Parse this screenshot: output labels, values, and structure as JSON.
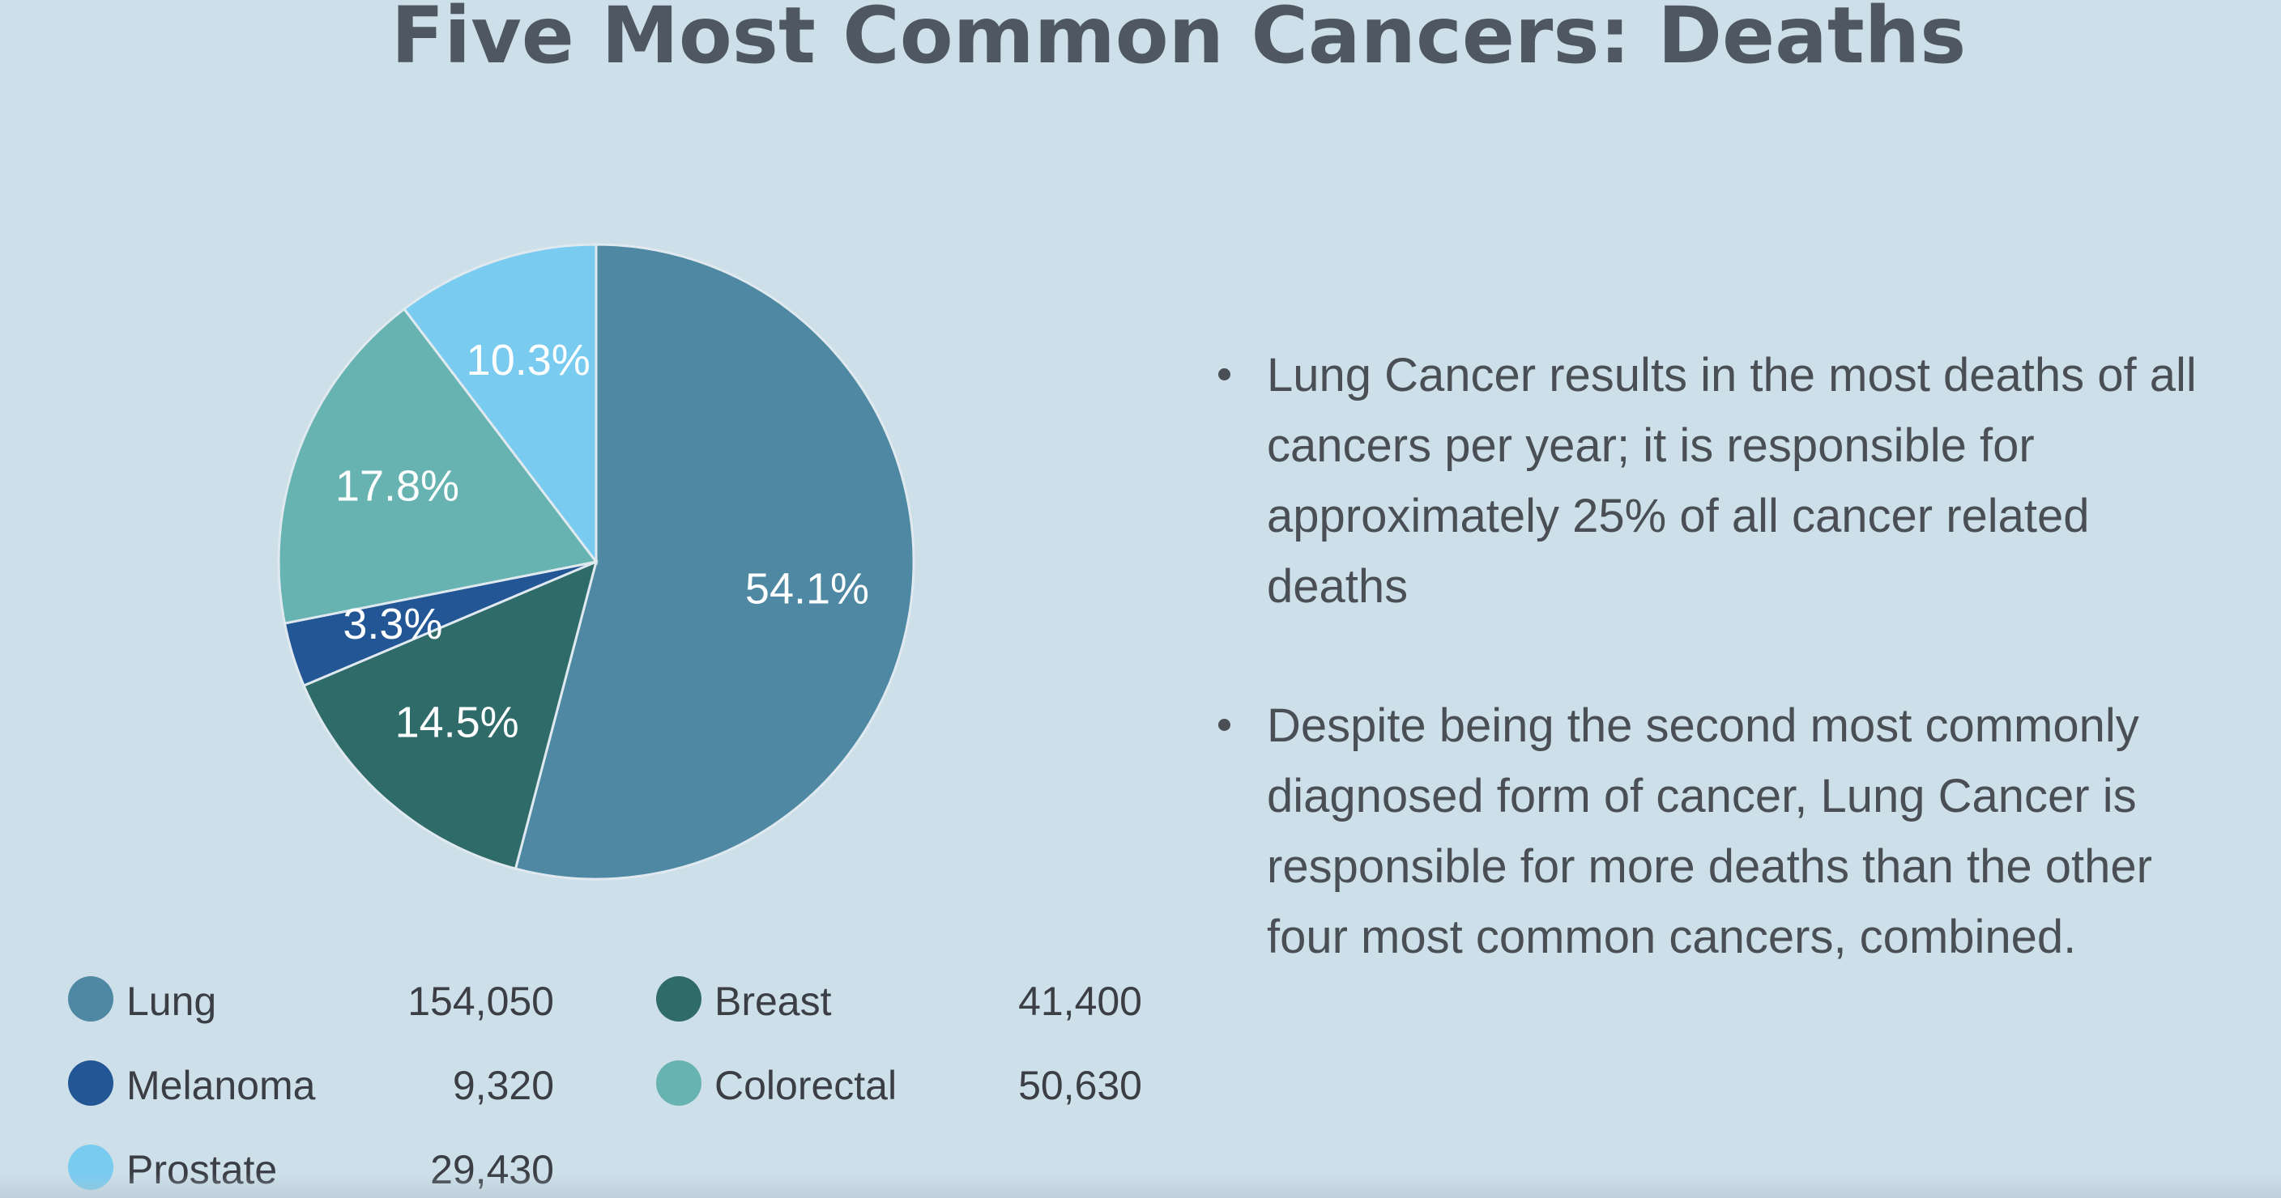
{
  "title": "Five Most Common Cancers: Deaths",
  "chart_data": {
    "type": "pie",
    "title": "Five Most Common Cancers: Deaths",
    "slices": [
      {
        "label": "Lung",
        "value": 154050,
        "percent_label": "54.1%",
        "color": "#4e88a2"
      },
      {
        "label": "Breast",
        "value": 41400,
        "percent_label": "14.5%",
        "color": "#2e6b69"
      },
      {
        "label": "Melanoma",
        "value": 9320,
        "percent_label": "3.3%",
        "color": "#225694"
      },
      {
        "label": "Colorectal",
        "value": 50630,
        "percent_label": "17.8%",
        "color": "#67b3b1"
      },
      {
        "label": "Prostate",
        "value": 29430,
        "percent_label": "10.3%",
        "color": "#79cbf0"
      }
    ],
    "slice_order": "clockwise from top",
    "legend": [
      {
        "label": "Lung",
        "value": "154,050",
        "color": "#4e88a2"
      },
      {
        "label": "Breast",
        "value": "41,400",
        "color": "#2e6b69"
      },
      {
        "label": "Melanoma",
        "value": "9,320",
        "color": "#225694"
      },
      {
        "label": "Colorectal",
        "value": "50,630",
        "color": "#67b3b1"
      },
      {
        "label": "Prostate",
        "value": "29,430",
        "color": "#79cbf0"
      }
    ],
    "legend_placement": "bottom"
  },
  "notes": [
    "Lung Cancer results in the most deaths of all cancers per year; it is responsible for approximately 25% of all cancer related deaths",
    "Despite being the second most commonly diagnosed form of cancer, Lung Cancer is responsible for more deaths than the other four most common cancers, combined."
  ]
}
